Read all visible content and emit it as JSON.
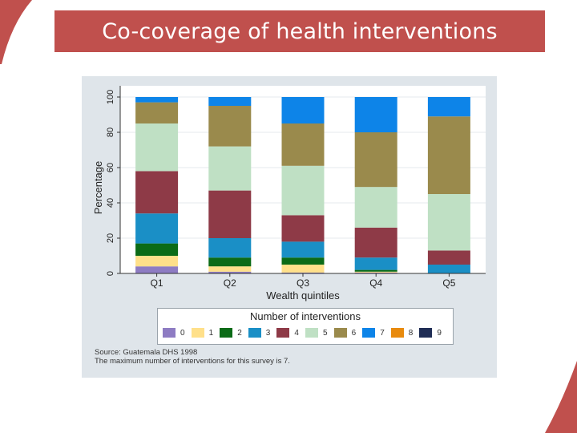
{
  "slide": {
    "title": "Co-coverage of health interventions"
  },
  "colors": {
    "title_bar": "#c0504d",
    "panel_bg": "#dfe5ea",
    "plot_bg": "#ffffff"
  },
  "chart_data": {
    "type": "bar",
    "stacked": true,
    "xlabel": "Wealth quintiles",
    "ylabel": "Percentage",
    "ylim": [
      0,
      100
    ],
    "yticks": [
      0,
      20,
      40,
      60,
      80,
      100
    ],
    "categories": [
      "Q1",
      "Q2",
      "Q3",
      "Q4",
      "Q5"
    ],
    "legend_title": "Number of interventions",
    "legend_position": "bottom",
    "series": [
      {
        "name": "0",
        "color": "#8e7cc3",
        "values": [
          4,
          1,
          0.5,
          0.5,
          0
        ]
      },
      {
        "name": "1",
        "color": "#ffe08a",
        "values": [
          6,
          3,
          4.5,
          0.5,
          0
        ]
      },
      {
        "name": "2",
        "color": "#0b6b17",
        "values": [
          7,
          5,
          4,
          1,
          0
        ]
      },
      {
        "name": "3",
        "color": "#1a8fc6",
        "values": [
          17,
          11,
          9,
          7,
          5
        ]
      },
      {
        "name": "4",
        "color": "#8e3a47",
        "values": [
          24,
          27,
          15,
          17,
          8
        ]
      },
      {
        "name": "5",
        "color": "#bfe0c4",
        "values": [
          27,
          25,
          28,
          23,
          32
        ]
      },
      {
        "name": "6",
        "color": "#9a8a4c",
        "values": [
          12,
          23,
          24,
          31,
          44
        ]
      },
      {
        "name": "7",
        "color": "#0d84e8",
        "values": [
          3,
          5,
          15,
          20,
          11
        ]
      },
      {
        "name": "8",
        "color": "#e88a0d",
        "values": [
          0,
          0,
          0,
          0,
          0
        ]
      },
      {
        "name": "9",
        "color": "#1f2d55",
        "values": [
          0,
          0,
          0,
          0,
          0
        ]
      }
    ],
    "notes": [
      "Source: Guatemala DHS 1998",
      "The maximum number of interventions for this survey is 7."
    ]
  }
}
